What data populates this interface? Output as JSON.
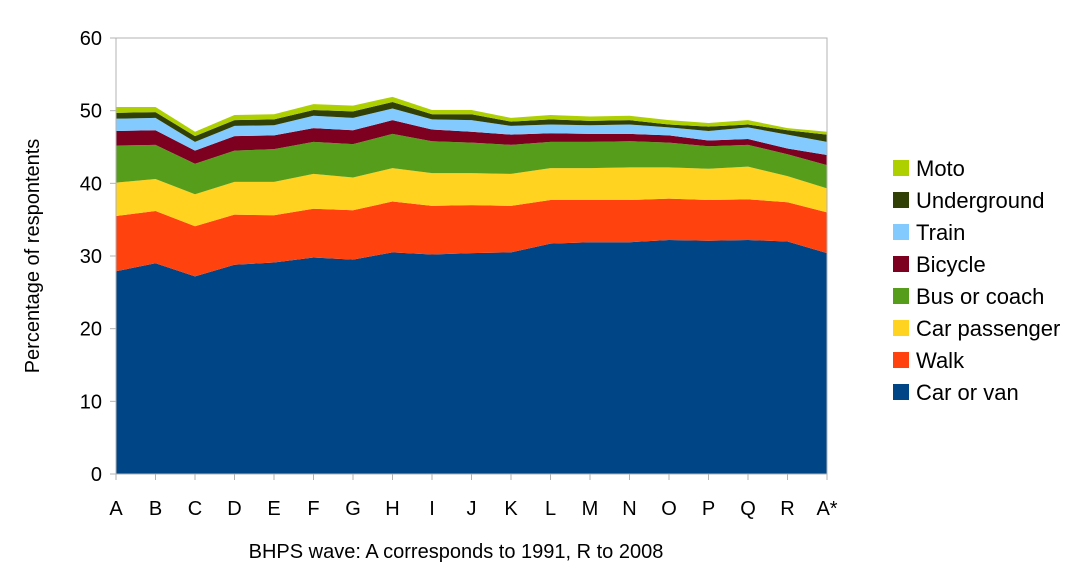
{
  "chart_data": {
    "type": "area",
    "stacked": true,
    "categories": [
      "A",
      "B",
      "C",
      "D",
      "E",
      "F",
      "G",
      "H",
      "I",
      "J",
      "K",
      "L",
      "M",
      "N",
      "O",
      "P",
      "Q",
      "R",
      "A*"
    ],
    "xlabel": "BHPS wave: A corresponds to 1991, R to 2008",
    "ylabel": "Percentage of respontents",
    "ylim": [
      0,
      60
    ],
    "yticks": [
      0,
      10,
      20,
      30,
      40,
      50,
      60
    ],
    "grid": false,
    "legend_position": "right",
    "series": [
      {
        "name": "Car or van",
        "color": "#004586",
        "values": [
          27.9,
          29.0,
          27.2,
          28.8,
          29.1,
          29.8,
          29.5,
          30.5,
          30.2,
          30.4,
          30.5,
          31.7,
          31.9,
          31.9,
          32.2,
          32.1,
          32.2,
          32.0,
          30.4
        ]
      },
      {
        "name": "Walk",
        "color": "#ff420e",
        "values": [
          7.6,
          7.2,
          6.9,
          6.9,
          6.5,
          6.7,
          6.8,
          7.0,
          6.7,
          6.6,
          6.4,
          6.0,
          5.8,
          5.8,
          5.7,
          5.6,
          5.6,
          5.4,
          5.6
        ]
      },
      {
        "name": "Car passenger",
        "color": "#ffd320",
        "values": [
          4.6,
          4.4,
          4.4,
          4.5,
          4.6,
          4.8,
          4.5,
          4.6,
          4.5,
          4.4,
          4.4,
          4.4,
          4.4,
          4.5,
          4.3,
          4.3,
          4.5,
          3.6,
          3.3
        ]
      },
      {
        "name": "Bus or coach",
        "color": "#579d1c",
        "values": [
          5.1,
          4.7,
          4.2,
          4.3,
          4.5,
          4.4,
          4.6,
          4.7,
          4.4,
          4.2,
          4.0,
          3.6,
          3.6,
          3.6,
          3.4,
          3.1,
          3.0,
          3.0,
          3.2
        ]
      },
      {
        "name": "Bicycle",
        "color": "#7e0021",
        "values": [
          2.0,
          2.0,
          1.8,
          2.0,
          1.9,
          1.9,
          1.9,
          1.9,
          1.6,
          1.5,
          1.4,
          1.2,
          1.1,
          1.0,
          1.0,
          0.8,
          0.8,
          0.8,
          1.4
        ]
      },
      {
        "name": "Train",
        "color": "#83caff",
        "values": [
          1.7,
          1.7,
          1.2,
          1.4,
          1.4,
          1.7,
          1.7,
          1.6,
          1.4,
          1.6,
          1.2,
          1.2,
          1.2,
          1.3,
          1.1,
          1.3,
          1.6,
          1.9,
          1.8
        ]
      },
      {
        "name": "Underground",
        "color": "#314004",
        "values": [
          0.8,
          0.8,
          0.8,
          0.8,
          0.8,
          0.8,
          0.9,
          0.9,
          0.7,
          0.8,
          0.6,
          0.7,
          0.6,
          0.6,
          0.4,
          0.6,
          0.4,
          0.6,
          1.0
        ]
      },
      {
        "name": "Moto",
        "color": "#aecf00",
        "values": [
          0.8,
          0.7,
          0.6,
          0.7,
          0.7,
          0.8,
          0.8,
          0.7,
          0.6,
          0.6,
          0.5,
          0.6,
          0.6,
          0.6,
          0.6,
          0.5,
          0.6,
          0.3,
          0.4
        ]
      }
    ]
  }
}
